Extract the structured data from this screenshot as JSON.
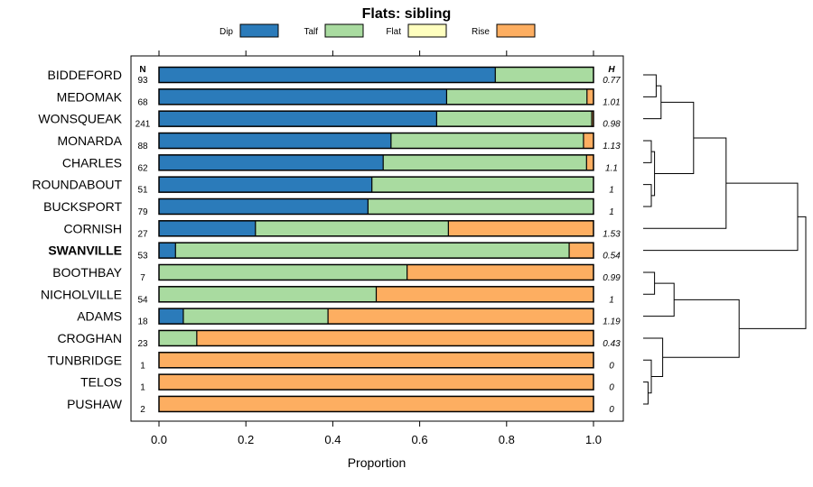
{
  "chart_data": {
    "type": "bar",
    "orientation": "horizontal",
    "stacked": true,
    "title": "Flats: sibling",
    "xlabel": "Proportion",
    "ylabel": "",
    "xlim": [
      -0.03,
      1.07
    ],
    "x_ticks": [
      0.0,
      0.2,
      0.4,
      0.6,
      0.8,
      1.0
    ],
    "x_tick_labels": [
      "0.0",
      "0.2",
      "0.4",
      "0.6",
      "0.8",
      "1.0"
    ],
    "n_header": "N",
    "h_header": "H",
    "legend": [
      {
        "name": "Dip",
        "color": "#2b7bba"
      },
      {
        "name": "Talf",
        "color": "#a9dba0"
      },
      {
        "name": "Flat",
        "color": "#ffffbf"
      },
      {
        "name": "Rise",
        "color": "#fdae61"
      }
    ],
    "categories": [
      "BIDDEFORD",
      "MEDOMAK",
      "WONSQUEAK",
      "MONARDA",
      "CHARLES",
      "ROUNDABOUT",
      "BUCKSPORT",
      "CORNISH",
      "SWANVILLE",
      "BOOTHBAY",
      "NICHOLVILLE",
      "ADAMS",
      "CROGHAN",
      "TUNBRIDGE",
      "TELOS",
      "PUSHAW"
    ],
    "highlighted_category": "SWANVILLE",
    "n": [
      "93",
      "68",
      "241",
      "88",
      "62",
      "51",
      "79",
      "27",
      "53",
      "7",
      "54",
      "18",
      "23",
      "1",
      "1",
      "2"
    ],
    "h": [
      "0.77",
      "1.01",
      "0.98",
      "1.13",
      "1.1",
      "1",
      "1",
      "1.53",
      "0.54",
      "0.99",
      "1",
      "1.19",
      "0.43",
      "0",
      "0",
      "0"
    ],
    "series": [
      {
        "name": "Dip",
        "values": [
          0.774,
          0.662,
          0.639,
          0.534,
          0.516,
          0.49,
          0.481,
          0.222,
          0.038,
          0.0,
          0.0,
          0.056,
          0.0,
          0,
          0,
          0
        ]
      },
      {
        "name": "Talf",
        "values": [
          0.226,
          0.323,
          0.357,
          0.443,
          0.468,
          0.51,
          0.519,
          0.444,
          0.906,
          0.571,
          0.5,
          0.333,
          0.087,
          0,
          0,
          0
        ]
      },
      {
        "name": "Flat",
        "values": [
          0.0,
          0.0,
          0.0,
          0.0,
          0.0,
          0.0,
          0.0,
          0.0,
          0.0,
          0.0,
          0.0,
          0.0,
          0.0,
          0,
          0,
          0
        ]
      },
      {
        "name": "Rise",
        "values": [
          0.0,
          0.015,
          0.004,
          0.023,
          0.016,
          0.0,
          0.0,
          0.334,
          0.056,
          0.429,
          0.5,
          0.611,
          0.913,
          1,
          1,
          1
        ]
      }
    ],
    "dendrogram": {
      "description": "hierarchical clustering of rows shown at right",
      "merges": [
        {
          "id": "a",
          "children": [
            "BIDDEFORD",
            "MEDOMAK"
          ],
          "height": 0.08
        },
        {
          "id": "b",
          "children": [
            "a",
            "WONSQUEAK"
          ],
          "height": 0.11
        },
        {
          "id": "c",
          "children": [
            "MONARDA",
            "CHARLES"
          ],
          "height": 0.05
        },
        {
          "id": "d",
          "children": [
            "ROUNDABOUT",
            "BUCKSPORT"
          ],
          "height": 0.05
        },
        {
          "id": "e",
          "children": [
            "c",
            "d"
          ],
          "height": 0.07
        },
        {
          "id": "f",
          "children": [
            "b",
            "e"
          ],
          "height": 0.31
        },
        {
          "id": "g",
          "children": [
            "f",
            "CORNISH"
          ],
          "height": 0.51
        },
        {
          "id": "h",
          "children": [
            "g",
            "SWANVILLE"
          ],
          "height": 0.95
        },
        {
          "id": "i",
          "children": [
            "BOOTHBAY",
            "NICHOLVILLE"
          ],
          "height": 0.07
        },
        {
          "id": "j",
          "children": [
            "i",
            "ADAMS"
          ],
          "height": 0.19
        },
        {
          "id": "k",
          "children": [
            "TELOS",
            "PUSHAW"
          ],
          "height": 0.03
        },
        {
          "id": "l",
          "children": [
            "TUNBRIDGE",
            "k"
          ],
          "height": 0.05
        },
        {
          "id": "m",
          "children": [
            "CROGHAN",
            "l"
          ],
          "height": 0.12
        },
        {
          "id": "n",
          "children": [
            "j",
            "m"
          ],
          "height": 0.59
        },
        {
          "id": "root",
          "children": [
            "h",
            "n"
          ],
          "height": 1.0
        }
      ]
    }
  }
}
